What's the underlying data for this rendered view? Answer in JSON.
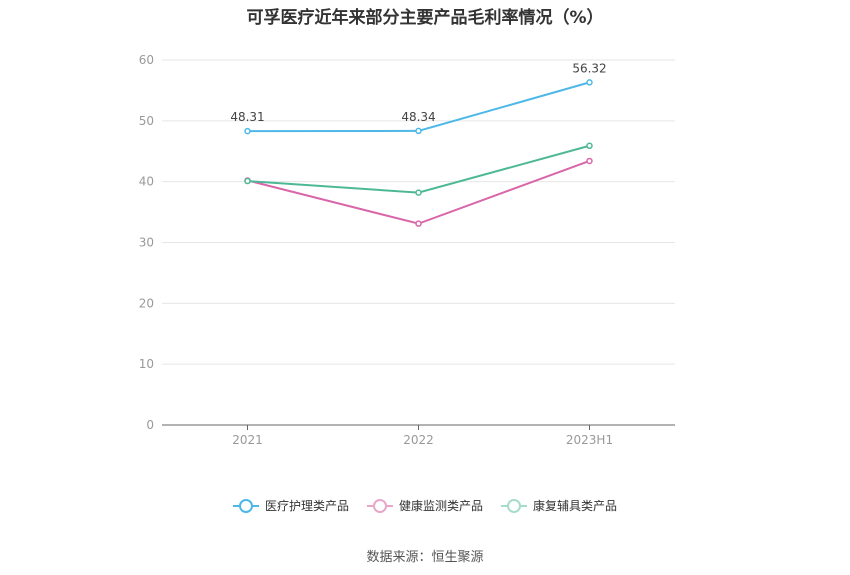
{
  "chart_data": {
    "type": "line",
    "title": "可孚医疗近年来部分主要产品毛利率情况（%）",
    "categories": [
      "2021",
      "2022",
      "2023H1"
    ],
    "ylim": [
      0,
      60
    ],
    "yticks": [
      0,
      10,
      20,
      30,
      40,
      50,
      60
    ],
    "grid": true,
    "legend_position": "bottom",
    "series": [
      {
        "name": "医疗护理类产品",
        "values": [
          48.31,
          48.34,
          56.32
        ],
        "color": "#4db8e8",
        "labels": [
          "48.31",
          "48.34",
          "56.32"
        ]
      },
      {
        "name": "健康监测类产品",
        "values": [
          40.2,
          33.1,
          43.4
        ],
        "color": "#d966a8",
        "labels": []
      },
      {
        "name": "康复辅具类产品",
        "values": [
          40.1,
          38.2,
          45.9
        ],
        "color": "#4db896",
        "labels": []
      }
    ]
  },
  "source": "数据来源：恒生聚源"
}
